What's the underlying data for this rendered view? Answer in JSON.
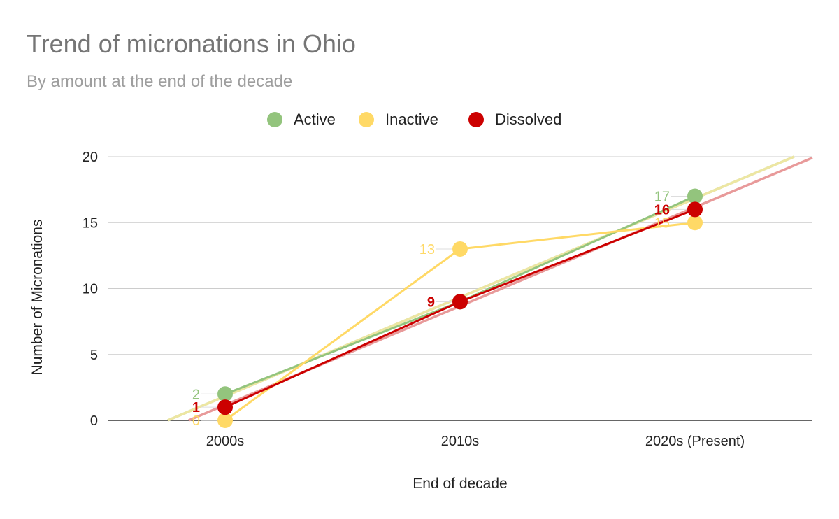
{
  "chart_data": {
    "type": "line",
    "title": "Trend of micronations in Ohio",
    "subtitle": "By amount at the end of the decade",
    "xlabel": "End of decade",
    "ylabel": "Number of Micronations",
    "categories": [
      "2000s",
      "2010s",
      "2020s (Present)"
    ],
    "ylim": [
      0,
      20
    ],
    "yticks": [
      "0",
      "5",
      "10",
      "15",
      "20"
    ],
    "grid": true,
    "legend_position": "top",
    "trendlines": true,
    "series": [
      {
        "name": "Active",
        "values": [
          2,
          9,
          17
        ],
        "labels": [
          "2",
          "9",
          "17"
        ],
        "color": "#93c47d",
        "trend_color": "#b7d7a8",
        "label_bold": false
      },
      {
        "name": "Inactive",
        "values": [
          0,
          13,
          15
        ],
        "labels": [
          "0",
          "13",
          "15"
        ],
        "color": "#ffd966",
        "trend_color": "#ede6a2",
        "label_bold": false
      },
      {
        "name": "Dissolved",
        "values": [
          1,
          9,
          16
        ],
        "labels": [
          "1",
          "9",
          "16"
        ],
        "color": "#cc0000",
        "trend_color": "#e89a9a",
        "label_bold": true
      }
    ]
  }
}
